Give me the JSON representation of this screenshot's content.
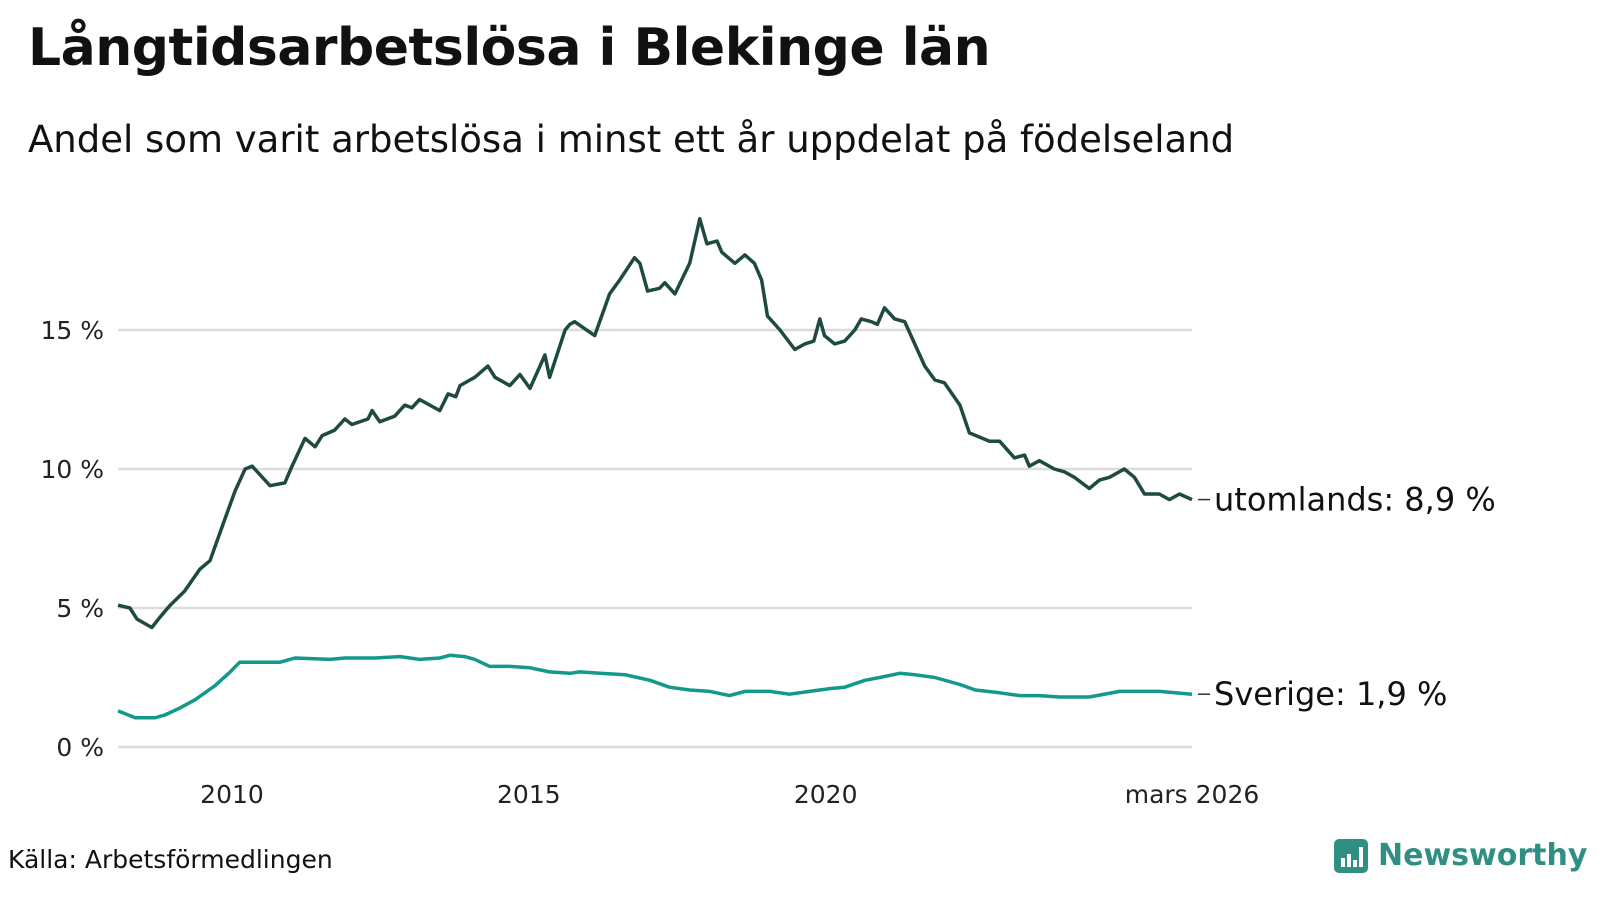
{
  "chart_data": {
    "type": "line",
    "title": "Långtidsarbetslösa i Blekinge län",
    "subtitle": "Andel som varit arbetslösa i minst ett år uppdelat på födelseland",
    "xlabel": "",
    "ylabel": "",
    "xlim": [
      2008.08,
      2026.17
    ],
    "ylim": [
      0,
      19.5
    ],
    "grid": true,
    "y_ticks": [
      {
        "value": 0,
        "label": "0 %"
      },
      {
        "value": 5,
        "label": "5 %"
      },
      {
        "value": 10,
        "label": "10 %"
      },
      {
        "value": 15,
        "label": "15 %"
      }
    ],
    "x_ticks": [
      {
        "value": 2010,
        "label": "2010"
      },
      {
        "value": 2015,
        "label": "2015"
      },
      {
        "value": 2020,
        "label": "2020"
      },
      {
        "value": 2026.17,
        "label": "mars 2026"
      }
    ],
    "series": [
      {
        "name": "utomlands",
        "end_label": "utomlands: 8,9 %",
        "color": "#1f4a42",
        "points": [
          [
            2008.08,
            5.1
          ],
          [
            2008.28,
            5.0
          ],
          [
            2008.4,
            4.6
          ],
          [
            2008.65,
            4.3
          ],
          [
            2008.8,
            4.7
          ],
          [
            2008.96,
            5.1
          ],
          [
            2009.2,
            5.6
          ],
          [
            2009.46,
            6.4
          ],
          [
            2009.63,
            6.7
          ],
          [
            2009.88,
            8.2
          ],
          [
            2010.05,
            9.2
          ],
          [
            2010.22,
            10.0
          ],
          [
            2010.34,
            10.1
          ],
          [
            2010.64,
            9.4
          ],
          [
            2010.89,
            9.5
          ],
          [
            2011.01,
            10.1
          ],
          [
            2011.23,
            11.1
          ],
          [
            2011.4,
            10.8
          ],
          [
            2011.52,
            11.2
          ],
          [
            2011.73,
            11.4
          ],
          [
            2011.9,
            11.8
          ],
          [
            2012.02,
            11.6
          ],
          [
            2012.29,
            11.8
          ],
          [
            2012.36,
            12.1
          ],
          [
            2012.49,
            11.7
          ],
          [
            2012.74,
            11.9
          ],
          [
            2012.91,
            12.3
          ],
          [
            2013.03,
            12.2
          ],
          [
            2013.16,
            12.5
          ],
          [
            2013.5,
            12.1
          ],
          [
            2013.64,
            12.7
          ],
          [
            2013.77,
            12.6
          ],
          [
            2013.84,
            13.0
          ],
          [
            2014.09,
            13.3
          ],
          [
            2014.31,
            13.7
          ],
          [
            2014.43,
            13.3
          ],
          [
            2014.68,
            13.0
          ],
          [
            2014.85,
            13.4
          ],
          [
            2015.02,
            12.9
          ],
          [
            2015.27,
            14.1
          ],
          [
            2015.35,
            13.3
          ],
          [
            2015.61,
            15.0
          ],
          [
            2015.69,
            15.2
          ],
          [
            2015.77,
            15.3
          ],
          [
            2016.11,
            14.8
          ],
          [
            2016.36,
            16.3
          ],
          [
            2016.53,
            16.8
          ],
          [
            2016.78,
            17.6
          ],
          [
            2016.87,
            17.4
          ],
          [
            2017.0,
            16.4
          ],
          [
            2017.2,
            16.5
          ],
          [
            2017.29,
            16.7
          ],
          [
            2017.46,
            16.3
          ],
          [
            2017.71,
            17.4
          ],
          [
            2017.88,
            19.0
          ],
          [
            2018.0,
            18.1
          ],
          [
            2018.17,
            18.2
          ],
          [
            2018.25,
            17.8
          ],
          [
            2018.47,
            17.4
          ],
          [
            2018.64,
            17.7
          ],
          [
            2018.8,
            17.4
          ],
          [
            2018.92,
            16.8
          ],
          [
            2019.02,
            15.5
          ],
          [
            2019.23,
            15.0
          ],
          [
            2019.48,
            14.3
          ],
          [
            2019.65,
            14.5
          ],
          [
            2019.8,
            14.6
          ],
          [
            2019.9,
            15.4
          ],
          [
            2019.98,
            14.8
          ],
          [
            2020.15,
            14.5
          ],
          [
            2020.32,
            14.6
          ],
          [
            2020.49,
            15.0
          ],
          [
            2020.6,
            15.4
          ],
          [
            2020.77,
            15.3
          ],
          [
            2020.87,
            15.2
          ],
          [
            2020.99,
            15.8
          ],
          [
            2021.16,
            15.4
          ],
          [
            2021.33,
            15.3
          ],
          [
            2021.5,
            14.5
          ],
          [
            2021.67,
            13.7
          ],
          [
            2021.84,
            13.2
          ],
          [
            2022.0,
            13.1
          ],
          [
            2022.26,
            12.3
          ],
          [
            2022.42,
            11.3
          ],
          [
            2022.76,
            11.0
          ],
          [
            2022.93,
            11.0
          ],
          [
            2023.18,
            10.4
          ],
          [
            2023.35,
            10.5
          ],
          [
            2023.43,
            10.1
          ],
          [
            2023.6,
            10.3
          ],
          [
            2023.85,
            10.0
          ],
          [
            2024.02,
            9.9
          ],
          [
            2024.19,
            9.7
          ],
          [
            2024.44,
            9.3
          ],
          [
            2024.61,
            9.6
          ],
          [
            2024.78,
            9.7
          ],
          [
            2025.03,
            10.0
          ],
          [
            2025.2,
            9.7
          ],
          [
            2025.37,
            9.1
          ],
          [
            2025.62,
            9.1
          ],
          [
            2025.79,
            8.9
          ],
          [
            2025.96,
            9.1
          ],
          [
            2026.17,
            8.9
          ]
        ]
      },
      {
        "name": "Sverige",
        "end_label": "Sverige: 1,9 %",
        "color": "#12998a",
        "points": [
          [
            2008.08,
            1.3
          ],
          [
            2008.37,
            1.05
          ],
          [
            2008.7,
            1.05
          ],
          [
            2008.87,
            1.15
          ],
          [
            2009.12,
            1.4
          ],
          [
            2009.38,
            1.7
          ],
          [
            2009.71,
            2.2
          ],
          [
            2009.97,
            2.7
          ],
          [
            2010.13,
            3.05
          ],
          [
            2010.39,
            3.05
          ],
          [
            2010.81,
            3.05
          ],
          [
            2011.06,
            3.2
          ],
          [
            2011.65,
            3.15
          ],
          [
            2011.9,
            3.2
          ],
          [
            2012.41,
            3.2
          ],
          [
            2012.83,
            3.25
          ],
          [
            2013.16,
            3.15
          ],
          [
            2013.5,
            3.2
          ],
          [
            2013.67,
            3.3
          ],
          [
            2013.92,
            3.25
          ],
          [
            2014.09,
            3.15
          ],
          [
            2014.34,
            2.9
          ],
          [
            2014.68,
            2.9
          ],
          [
            2015.02,
            2.85
          ],
          [
            2015.35,
            2.7
          ],
          [
            2015.69,
            2.65
          ],
          [
            2015.86,
            2.7
          ],
          [
            2016.2,
            2.65
          ],
          [
            2016.62,
            2.6
          ],
          [
            2017.04,
            2.4
          ],
          [
            2017.37,
            2.15
          ],
          [
            2017.71,
            2.05
          ],
          [
            2018.05,
            2.0
          ],
          [
            2018.38,
            1.85
          ],
          [
            2018.64,
            2.0
          ],
          [
            2019.06,
            2.0
          ],
          [
            2019.39,
            1.9
          ],
          [
            2019.73,
            2.0
          ],
          [
            2020.07,
            2.1
          ],
          [
            2020.32,
            2.15
          ],
          [
            2020.66,
            2.4
          ],
          [
            2020.91,
            2.5
          ],
          [
            2021.25,
            2.65
          ],
          [
            2021.5,
            2.6
          ],
          [
            2021.84,
            2.5
          ],
          [
            2022.26,
            2.25
          ],
          [
            2022.52,
            2.05
          ],
          [
            2022.93,
            1.95
          ],
          [
            2023.27,
            1.85
          ],
          [
            2023.6,
            1.85
          ],
          [
            2023.94,
            1.8
          ],
          [
            2024.44,
            1.8
          ],
          [
            2024.95,
            2.0
          ],
          [
            2025.29,
            2.0
          ],
          [
            2025.62,
            2.0
          ],
          [
            2026.17,
            1.9
          ]
        ]
      }
    ]
  },
  "source": "Källa: Arbetsförmedlingen",
  "logo": "Newsworthy"
}
